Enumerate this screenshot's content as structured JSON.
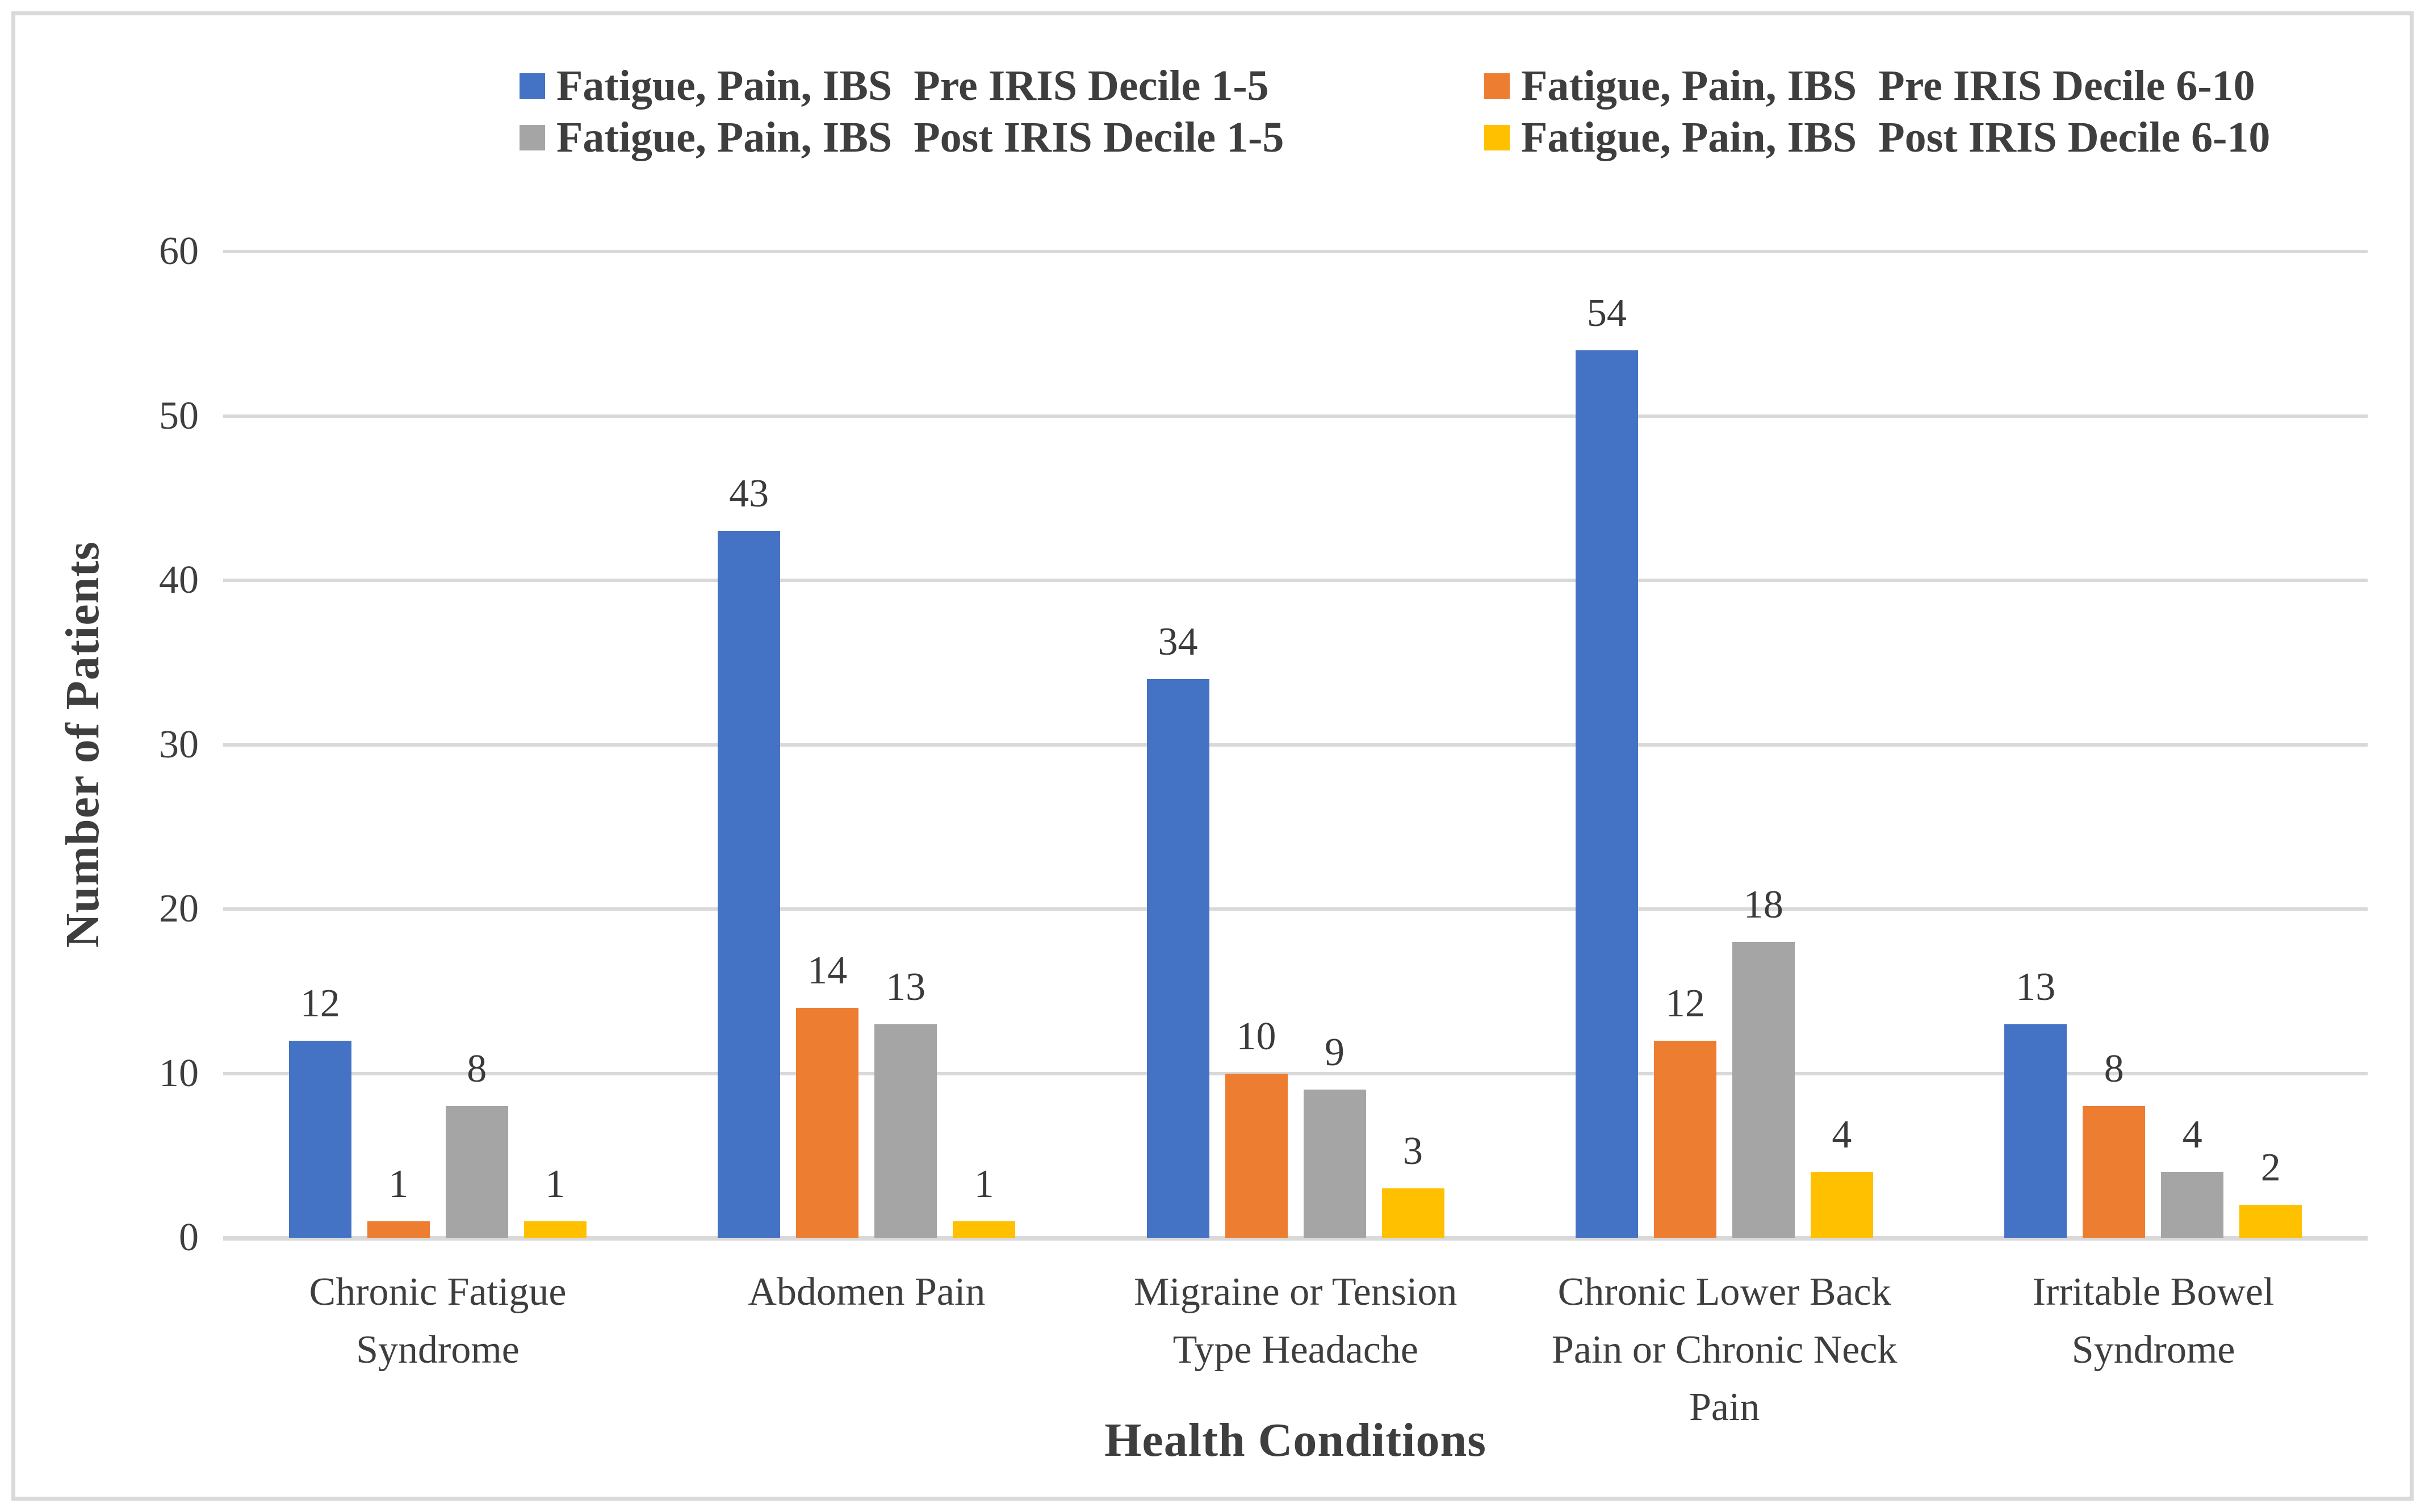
{
  "figure": {
    "background": "#ffffff",
    "border_color": "#d9d9d9",
    "text_color": "#3e3e3e",
    "gridline_color": "#d9d9d9"
  },
  "chart_data": {
    "type": "bar",
    "title": "",
    "xlabel": "Health Conditions",
    "ylabel": "Number of Patients",
    "categories": [
      "Chronic Fatigue Syndrome",
      "Abdomen Pain",
      "Migraine or Tension Type Headache",
      "Chronic Lower Back Pain or Chronic Neck Pain",
      "Irritable Bowel Syndrome"
    ],
    "series": [
      {
        "name": "Fatigue, Pain, IBS  Pre IRIS Decile 1-5",
        "color": "#4472c4",
        "values": [
          12,
          43,
          34,
          54,
          13
        ]
      },
      {
        "name": "Fatigue, Pain, IBS  Pre IRIS Decile 6-10",
        "color": "#ed7d31",
        "values": [
          1,
          14,
          10,
          12,
          8
        ]
      },
      {
        "name": "Fatigue, Pain, IBS  Post IRIS Decile 1-5",
        "color": "#a5a5a5",
        "values": [
          8,
          13,
          9,
          18,
          4
        ]
      },
      {
        "name": "Fatigue, Pain, IBS  Post IRIS Decile 6-10",
        "color": "#ffc000",
        "values": [
          1,
          1,
          3,
          4,
          2
        ]
      }
    ],
    "ylim": [
      0,
      60
    ],
    "yticks": [
      0,
      10,
      20,
      30,
      40,
      50,
      60
    ],
    "grid": true,
    "legend_position": "top",
    "data_labels": true
  }
}
